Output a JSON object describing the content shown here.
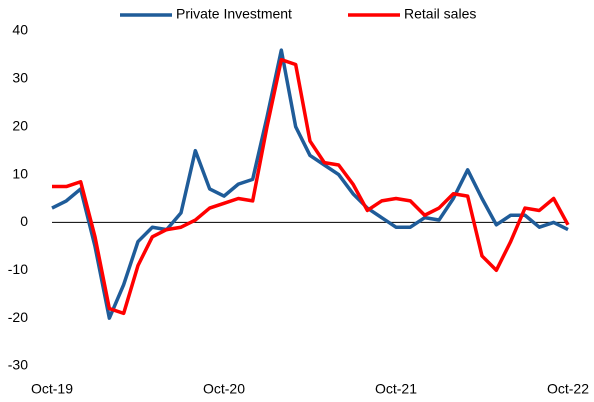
{
  "chart_data": {
    "type": "line",
    "categories": [
      "Oct-19",
      null,
      null,
      null,
      null,
      null,
      null,
      null,
      null,
      null,
      null,
      null,
      "Oct-20",
      null,
      null,
      null,
      null,
      null,
      null,
      null,
      null,
      null,
      null,
      null,
      "Oct-21",
      null,
      null,
      null,
      null,
      null,
      null,
      null,
      null,
      null,
      null,
      null,
      "Oct-22"
    ],
    "series": [
      {
        "name": "Private Investment",
        "color": "#1f5c99",
        "values": [
          3,
          4.5,
          7,
          -5,
          -20,
          -13,
          -4,
          -1,
          -1.5,
          2,
          15,
          7,
          5.5,
          8,
          9,
          22,
          36,
          20,
          14,
          12,
          10,
          6,
          3,
          1,
          -1,
          -1,
          1,
          0.5,
          5,
          11,
          5,
          -0.5,
          1.5,
          1.5,
          -1,
          0,
          -1.5
        ]
      },
      {
        "name": "Retail sales",
        "color": "#ff0000",
        "values": [
          7.5,
          7.5,
          8.5,
          -3,
          -18,
          -19,
          -9,
          -3,
          -1.5,
          -1,
          0.5,
          3,
          4,
          5,
          4.5,
          20,
          34,
          33,
          17,
          12.5,
          12,
          8,
          2.5,
          4.5,
          5,
          4.5,
          1.5,
          3,
          6,
          5.5,
          -7,
          -10,
          -4,
          3,
          2.5,
          5,
          -0.5
        ]
      }
    ],
    "ylim": [
      -30,
      40
    ],
    "yticks": [
      -30,
      -20,
      -10,
      0,
      10,
      20,
      30,
      40
    ],
    "grid": false,
    "legend": "top"
  }
}
